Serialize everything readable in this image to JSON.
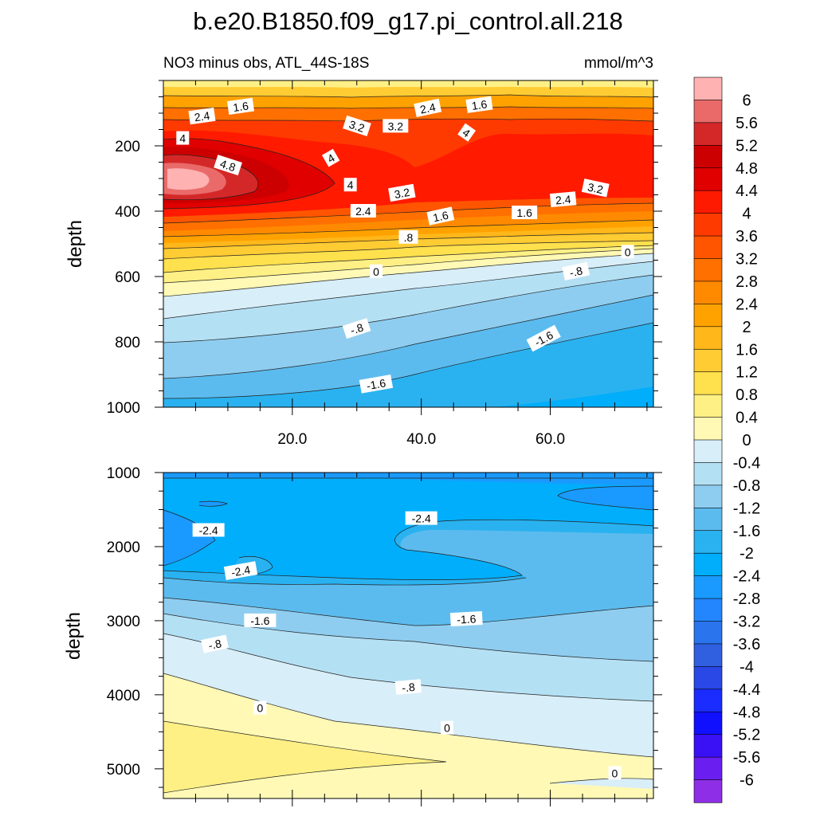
{
  "chart_data": [
    {
      "type": "contour",
      "title": "b.e20.B1850.f09_g17.pi_control.all.218",
      "subtitle_left": "NO3 minus obs, ATL_44S-18S",
      "subtitle_right": "mmol/m^3",
      "ylabel": "depth",
      "xlabel": "",
      "xlim": [
        0,
        76
      ],
      "ylim": [
        0,
        1000
      ],
      "y_reversed": true,
      "xticks": [
        20,
        40,
        60
      ],
      "xtick_labels": [
        "20.0",
        "40.0",
        "60.0"
      ],
      "yticks": [
        200,
        400,
        600,
        800,
        1000
      ],
      "ytick_labels": [
        "200",
        "400",
        "600",
        "800",
        "1000"
      ],
      "contour_labels": [
        {
          "text": "2.4",
          "x": 6,
          "y": 110,
          "angle": -8
        },
        {
          "text": "1.6",
          "x": 12,
          "y": 80,
          "angle": -8
        },
        {
          "text": "2.4",
          "x": 41,
          "y": 85,
          "angle": -12
        },
        {
          "text": "1.6",
          "x": 49,
          "y": 75,
          "angle": -8
        },
        {
          "text": "3.2",
          "x": 30,
          "y": 140,
          "angle": 18
        },
        {
          "text": "3.2",
          "x": 36,
          "y": 140,
          "angle": 0
        },
        {
          "text": "4",
          "x": 3,
          "y": 177,
          "angle": 0
        },
        {
          "text": "4",
          "x": 47,
          "y": 160,
          "angle": 35
        },
        {
          "text": "4.8",
          "x": 10,
          "y": 260,
          "angle": 18
        },
        {
          "text": "4",
          "x": 26,
          "y": 238,
          "angle": -30
        },
        {
          "text": "4",
          "x": 29,
          "y": 320,
          "angle": 0
        },
        {
          "text": "3.2",
          "x": 37,
          "y": 345,
          "angle": -10
        },
        {
          "text": "3.2",
          "x": 67,
          "y": 330,
          "angle": 12
        },
        {
          "text": "2.4",
          "x": 31,
          "y": 400,
          "angle": 0
        },
        {
          "text": "2.4",
          "x": 62,
          "y": 365,
          "angle": -5
        },
        {
          "text": "1.6",
          "x": 43,
          "y": 416,
          "angle": -12
        },
        {
          "text": ".8",
          "x": 38,
          "y": 480,
          "angle": 0
        },
        {
          "text": "1.6",
          "x": 56,
          "y": 405,
          "angle": 0
        },
        {
          "text": "0",
          "x": 33,
          "y": 585,
          "angle": 0
        },
        {
          "text": "0",
          "x": 72,
          "y": 525,
          "angle": 0
        },
        {
          "text": "-.8",
          "x": 64,
          "y": 585,
          "angle": -12
        },
        {
          "text": "-.8",
          "x": 30,
          "y": 760,
          "angle": -18
        },
        {
          "text": "-1.6",
          "x": 59,
          "y": 790,
          "angle": -28
        },
        {
          "text": "-1.6",
          "x": 33,
          "y": 930,
          "angle": -10
        }
      ]
    },
    {
      "type": "contour",
      "ylabel": "depth",
      "xlim": [
        0,
        76
      ],
      "ylim": [
        1000,
        5400
      ],
      "y_reversed": true,
      "yticks": [
        1000,
        2000,
        3000,
        4000,
        5000
      ],
      "ytick_labels": [
        "1000",
        "2000",
        "3000",
        "4000",
        "5000"
      ],
      "contour_labels": [
        {
          "text": "-2.4",
          "x": 7,
          "y": 1780,
          "angle": 0
        },
        {
          "text": "-2.4",
          "x": 40,
          "y": 1620,
          "angle": 0
        },
        {
          "text": "-2.4",
          "x": 12,
          "y": 2330,
          "angle": -10
        },
        {
          "text": "-1.6",
          "x": 15,
          "y": 3000,
          "angle": 0
        },
        {
          "text": "-1.6",
          "x": 47,
          "y": 2980,
          "angle": -3
        },
        {
          "text": "-.8",
          "x": 8,
          "y": 3320,
          "angle": -12
        },
        {
          "text": "-.8",
          "x": 38,
          "y": 3900,
          "angle": -5
        },
        {
          "text": "0",
          "x": 15,
          "y": 4180,
          "angle": 0
        },
        {
          "text": "0",
          "x": 44,
          "y": 4450,
          "angle": 0
        },
        {
          "text": "0",
          "x": 70,
          "y": 5060,
          "angle": 0
        }
      ]
    }
  ],
  "colorbar": {
    "labels": [
      "6",
      "5.6",
      "5.2",
      "4.8",
      "4.4",
      "4",
      "3.6",
      "3.2",
      "2.8",
      "2.4",
      "2",
      "1.6",
      "1.2",
      "0.8",
      "0.4",
      "0",
      "-0.4",
      "-0.8",
      "-1.2",
      "-1.6",
      "-2",
      "-2.4",
      "-2.8",
      "-3.2",
      "-3.6",
      "-4",
      "-4.4",
      "-4.8",
      "-5.2",
      "-5.6",
      "-6"
    ],
    "colors": [
      "#feb2b2",
      "#ea6a6a",
      "#d42828",
      "#cc0000",
      "#e00000",
      "#fe1a00",
      "#ff3a00",
      "#ff5500",
      "#ff7000",
      "#ff8a00",
      "#ffa200",
      "#ffb71a",
      "#ffcc33",
      "#ffe04d",
      "#fff085",
      "#fff9b5",
      "#d8eef8",
      "#b4e0f4",
      "#8ecdf0",
      "#5cbbee",
      "#2ab2f0",
      "#00aefc",
      "#1a9aff",
      "#2386ff",
      "#2a74ee",
      "#3060e0",
      "#2a48e6",
      "#1a2cff",
      "#1010ff",
      "#3a10f4",
      "#6a1ef0",
      "#8e2ee6"
    ]
  }
}
